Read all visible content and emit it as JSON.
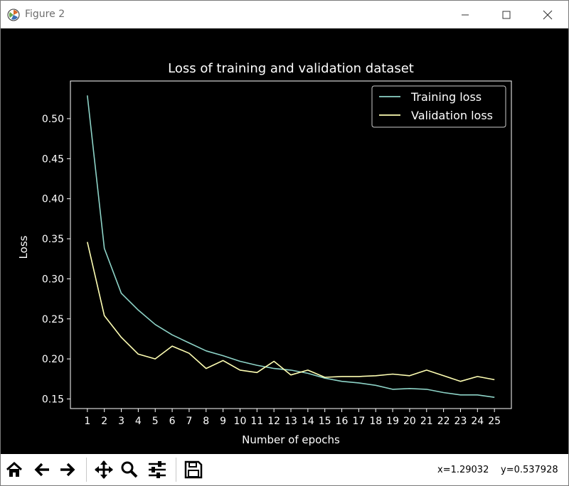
{
  "window": {
    "title": "Figure 2",
    "icon": "matplotlib-icon"
  },
  "controls": {
    "minimize": "minimize-icon",
    "maximize": "maximize-icon",
    "close": "close-icon"
  },
  "toolbar": {
    "buttons": [
      "home-icon",
      "back-arrow-icon",
      "forward-arrow-icon",
      "pan-move-icon",
      "zoom-magnifier-icon",
      "subplots-config-icon",
      "save-floppy-icon"
    ],
    "coords_x": "x=1.29032",
    "coords_y": "y=0.537928"
  },
  "colors": {
    "background": "#000000",
    "training": "#8dd3c7",
    "validation": "#ffffb3",
    "text": "#ffffff"
  },
  "chart_data": {
    "type": "line",
    "title": "Loss of training and validation dataset",
    "xlabel": "Number of epochs",
    "ylabel": "Loss",
    "x": [
      1,
      2,
      3,
      4,
      5,
      6,
      7,
      8,
      9,
      10,
      11,
      12,
      13,
      14,
      15,
      16,
      17,
      18,
      19,
      20,
      21,
      22,
      23,
      24,
      25
    ],
    "xticks": [
      "1",
      "2",
      "3",
      "4",
      "5",
      "6",
      "7",
      "8",
      "9",
      "10",
      "11",
      "12",
      "13",
      "14",
      "15",
      "16",
      "17",
      "18",
      "19",
      "20",
      "21",
      "22",
      "23",
      "24",
      "25"
    ],
    "yticks": [
      "0.15",
      "0.20",
      "0.25",
      "0.30",
      "0.35",
      "0.40",
      "0.45",
      "0.50"
    ],
    "ytick_values": [
      0.15,
      0.2,
      0.25,
      0.3,
      0.35,
      0.4,
      0.45,
      0.5
    ],
    "xlim": [
      0,
      26
    ],
    "ylim": [
      0.138,
      0.547
    ],
    "grid": false,
    "legend": "top-right",
    "series": [
      {
        "name": "Training loss",
        "color": "#8dd3c7",
        "values": [
          0.529,
          0.338,
          0.282,
          0.261,
          0.243,
          0.23,
          0.22,
          0.21,
          0.204,
          0.197,
          0.192,
          0.188,
          0.186,
          0.182,
          0.176,
          0.172,
          0.17,
          0.167,
          0.162,
          0.163,
          0.162,
          0.158,
          0.155,
          0.155,
          0.152
        ]
      },
      {
        "name": "Validation loss",
        "color": "#ffffb3",
        "values": [
          0.346,
          0.254,
          0.227,
          0.206,
          0.2,
          0.216,
          0.207,
          0.188,
          0.198,
          0.186,
          0.183,
          0.197,
          0.18,
          0.186,
          0.177,
          0.178,
          0.178,
          0.179,
          0.181,
          0.179,
          0.186,
          0.179,
          0.172,
          0.178,
          0.174
        ]
      }
    ]
  }
}
